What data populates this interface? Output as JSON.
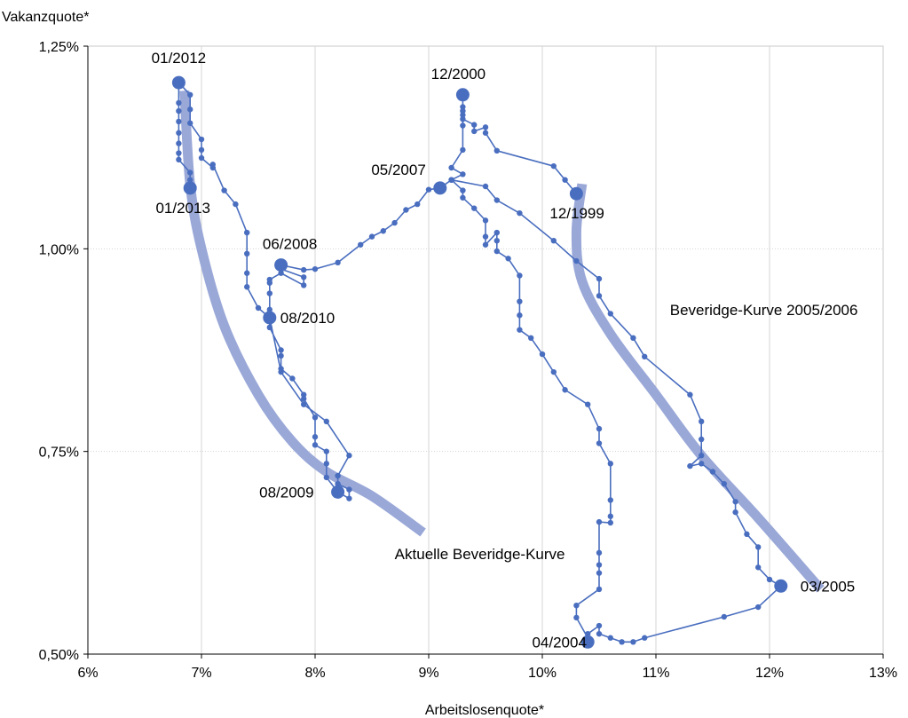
{
  "chart_data": {
    "type": "line",
    "xlabel": "Arbeitslosenquote*",
    "ylabel": "Vakanzquote*",
    "xlim": [
      6,
      13
    ],
    "ylim": [
      0.5,
      1.25
    ],
    "x_ticks": [
      {
        "value": 6,
        "label": "6%"
      },
      {
        "value": 7,
        "label": "7%"
      },
      {
        "value": 8,
        "label": "8%"
      },
      {
        "value": 9,
        "label": "9%"
      },
      {
        "value": 10,
        "label": "10%"
      },
      {
        "value": 11,
        "label": "11%"
      },
      {
        "value": 12,
        "label": "12%"
      },
      {
        "value": 13,
        "label": "13%"
      }
    ],
    "y_ticks": [
      {
        "value": 0.5,
        "label": "0,50%"
      },
      {
        "value": 0.75,
        "label": "0,75%"
      },
      {
        "value": 1.0,
        "label": "1,00%"
      },
      {
        "value": 1.25,
        "label": "1,25%"
      }
    ],
    "grid": true,
    "series": [
      {
        "role": "monthly",
        "color": "#4a6ebf",
        "points": [
          [
            10.3,
            1.068
          ],
          [
            10.2,
            1.085
          ],
          [
            10.1,
            1.102
          ],
          [
            9.6,
            1.121
          ],
          [
            9.5,
            1.143
          ],
          [
            9.5,
            1.15
          ],
          [
            9.4,
            1.145
          ],
          [
            9.4,
            1.153
          ],
          [
            9.3,
            1.16
          ],
          [
            9.3,
            1.165
          ],
          [
            9.3,
            1.175
          ],
          [
            9.3,
            1.19
          ],
          [
            9.3,
            1.17
          ],
          [
            9.3,
            1.152
          ],
          [
            9.3,
            1.122
          ],
          [
            9.2,
            1.1
          ],
          [
            9.3,
            1.092
          ],
          [
            9.2,
            1.085
          ],
          [
            9.1,
            1.075
          ],
          [
            9.0,
            1.073
          ],
          [
            8.9,
            1.055
          ],
          [
            8.8,
            1.048
          ],
          [
            8.7,
            1.032
          ],
          [
            8.6,
            1.022
          ],
          [
            8.5,
            1.015
          ],
          [
            8.4,
            1.005
          ],
          [
            8.2,
            0.983
          ],
          [
            8.0,
            0.975
          ],
          [
            7.9,
            0.974
          ],
          [
            7.7,
            0.98
          ],
          [
            7.7,
            0.975
          ],
          [
            7.9,
            0.965
          ],
          [
            7.9,
            0.955
          ],
          [
            7.7,
            0.97
          ],
          [
            7.6,
            0.962
          ],
          [
            7.6,
            0.958
          ],
          [
            7.6,
            0.945
          ],
          [
            7.6,
            0.925
          ],
          [
            7.6,
            0.915
          ],
          [
            7.5,
            0.927
          ],
          [
            7.4,
            0.953
          ],
          [
            7.4,
            0.97
          ],
          [
            7.4,
            0.994
          ],
          [
            7.4,
            1.02
          ],
          [
            7.3,
            1.055
          ],
          [
            7.2,
            1.072
          ],
          [
            7.1,
            1.104
          ],
          [
            7.1,
            1.1
          ],
          [
            7.0,
            1.112
          ],
          [
            7.0,
            1.122
          ],
          [
            7.0,
            1.135
          ],
          [
            6.9,
            1.155
          ],
          [
            6.9,
            1.172
          ],
          [
            6.9,
            1.19
          ],
          [
            6.8,
            1.205
          ],
          [
            6.8,
            1.18
          ],
          [
            6.8,
            1.17
          ],
          [
            6.8,
            1.157
          ],
          [
            6.8,
            1.143
          ],
          [
            6.8,
            1.13
          ],
          [
            6.8,
            1.118
          ],
          [
            6.8,
            1.11
          ],
          [
            6.9,
            1.094
          ],
          [
            6.9,
            1.085
          ],
          [
            6.9,
            1.075
          ]
        ]
      },
      {
        "role": "monthly",
        "color": "#4a6ebf",
        "points": [
          [
            7.6,
            0.915
          ],
          [
            7.6,
            0.903
          ],
          [
            7.7,
            0.875
          ],
          [
            7.7,
            0.868
          ],
          [
            7.7,
            0.852
          ],
          [
            7.8,
            0.84
          ],
          [
            7.9,
            0.82
          ],
          [
            7.9,
            0.815
          ],
          [
            8.0,
            0.792
          ],
          [
            8.0,
            0.768
          ],
          [
            8.0,
            0.758
          ],
          [
            8.1,
            0.75
          ],
          [
            8.1,
            0.735
          ],
          [
            8.1,
            0.718
          ],
          [
            8.2,
            0.7
          ],
          [
            8.3,
            0.692
          ],
          [
            8.3,
            0.703
          ],
          [
            8.2,
            0.71
          ],
          [
            8.2,
            0.72
          ],
          [
            8.3,
            0.745
          ],
          [
            8.1,
            0.787
          ],
          [
            7.9,
            0.808
          ],
          [
            7.7,
            0.848
          ],
          [
            7.6,
            0.915
          ]
        ]
      },
      {
        "role": "monthly",
        "color": "#4a6ebf",
        "points": [
          [
            9.2,
            1.085
          ],
          [
            9.5,
            1.077
          ],
          [
            9.6,
            1.06
          ],
          [
            9.8,
            1.044
          ],
          [
            10.1,
            1.01
          ],
          [
            10.3,
            0.985
          ],
          [
            10.5,
            0.963
          ],
          [
            10.5,
            0.942
          ],
          [
            10.6,
            0.92
          ],
          [
            10.8,
            0.89
          ],
          [
            10.9,
            0.867
          ],
          [
            11.3,
            0.82
          ],
          [
            11.4,
            0.787
          ],
          [
            11.4,
            0.765
          ],
          [
            11.4,
            0.745
          ],
          [
            11.3,
            0.732
          ],
          [
            11.4,
            0.735
          ],
          [
            11.5,
            0.725
          ],
          [
            11.6,
            0.71
          ],
          [
            11.7,
            0.688
          ],
          [
            11.7,
            0.675
          ],
          [
            11.8,
            0.648
          ],
          [
            11.9,
            0.632
          ],
          [
            11.9,
            0.607
          ],
          [
            12.0,
            0.592
          ],
          [
            12.1,
            0.584
          ],
          [
            11.9,
            0.558
          ],
          [
            11.6,
            0.546
          ],
          [
            10.9,
            0.52
          ],
          [
            10.8,
            0.515
          ],
          [
            10.7,
            0.515
          ],
          [
            10.6,
            0.52
          ],
          [
            10.5,
            0.525
          ],
          [
            10.5,
            0.535
          ],
          [
            10.4,
            0.525
          ],
          [
            10.4,
            0.515
          ],
          [
            10.4,
            0.52
          ],
          [
            10.3,
            0.545
          ],
          [
            10.3,
            0.56
          ],
          [
            10.5,
            0.58
          ],
          [
            10.5,
            0.6
          ],
          [
            10.5,
            0.61
          ],
          [
            10.5,
            0.625
          ],
          [
            10.5,
            0.663
          ],
          [
            10.6,
            0.662
          ],
          [
            10.6,
            0.67
          ],
          [
            10.6,
            0.69
          ],
          [
            10.6,
            0.735
          ],
          [
            10.5,
            0.76
          ],
          [
            10.5,
            0.778
          ],
          [
            10.4,
            0.808
          ],
          [
            10.2,
            0.826
          ],
          [
            10.1,
            0.848
          ],
          [
            10.0,
            0.87
          ],
          [
            9.9,
            0.89
          ],
          [
            9.8,
            0.9
          ],
          [
            9.8,
            0.918
          ],
          [
            9.8,
            0.935
          ],
          [
            9.8,
            0.967
          ],
          [
            9.7,
            0.988
          ],
          [
            9.6,
            0.997
          ],
          [
            9.6,
            1.01
          ],
          [
            9.6,
            1.02
          ],
          [
            9.5,
            1.005
          ],
          [
            9.5,
            1.015
          ],
          [
            9.5,
            1.035
          ],
          [
            9.4,
            1.05
          ],
          [
            9.3,
            1.063
          ],
          [
            9.3,
            1.072
          ],
          [
            9.2,
            1.085
          ]
        ]
      }
    ],
    "curves": [
      {
        "label": "Aktuelle Beveridge-Kurve",
        "color": "#9aa8d8",
        "points": [
          [
            6.85,
            1.195
          ],
          [
            6.9,
            1.08
          ],
          [
            7.0,
            1.0
          ],
          [
            7.2,
            0.905
          ],
          [
            7.5,
            0.82
          ],
          [
            7.8,
            0.762
          ],
          [
            8.1,
            0.725
          ],
          [
            8.5,
            0.695
          ],
          [
            8.95,
            0.65
          ]
        ]
      },
      {
        "label": "Beveridge-Kurve 2005/2006",
        "color": "#9aa8d8",
        "points": [
          [
            10.35,
            1.08
          ],
          [
            10.3,
            1.02
          ],
          [
            10.35,
            0.96
          ],
          [
            10.6,
            0.895
          ],
          [
            11.0,
            0.82
          ],
          [
            11.4,
            0.745
          ],
          [
            11.9,
            0.668
          ],
          [
            12.45,
            0.58
          ]
        ]
      }
    ],
    "highlighted": [
      {
        "label": "01/2012",
        "x": 6.8,
        "y": 1.205
      },
      {
        "label": "01/2013",
        "x": 6.9,
        "y": 1.075
      },
      {
        "label": "06/2008",
        "x": 7.7,
        "y": 0.98
      },
      {
        "label": "08/2010",
        "x": 7.6,
        "y": 0.915
      },
      {
        "label": "08/2009",
        "x": 8.2,
        "y": 0.7
      },
      {
        "label": "12/2000",
        "x": 9.3,
        "y": 1.19
      },
      {
        "label": "05/2007",
        "x": 9.1,
        "y": 1.075
      },
      {
        "label": "12/1999",
        "x": 10.3,
        "y": 1.068
      },
      {
        "label": "03/2005",
        "x": 12.1,
        "y": 0.584
      },
      {
        "label": "04/2004",
        "x": 10.4,
        "y": 0.515
      }
    ],
    "annotations": [
      {
        "text": "Aktuelle Beveridge-Kurve",
        "x": 9.45,
        "y": 0.617
      },
      {
        "text": "Beveridge-Kurve 2005/2006",
        "x": 11.95,
        "y": 0.918
      }
    ]
  }
}
